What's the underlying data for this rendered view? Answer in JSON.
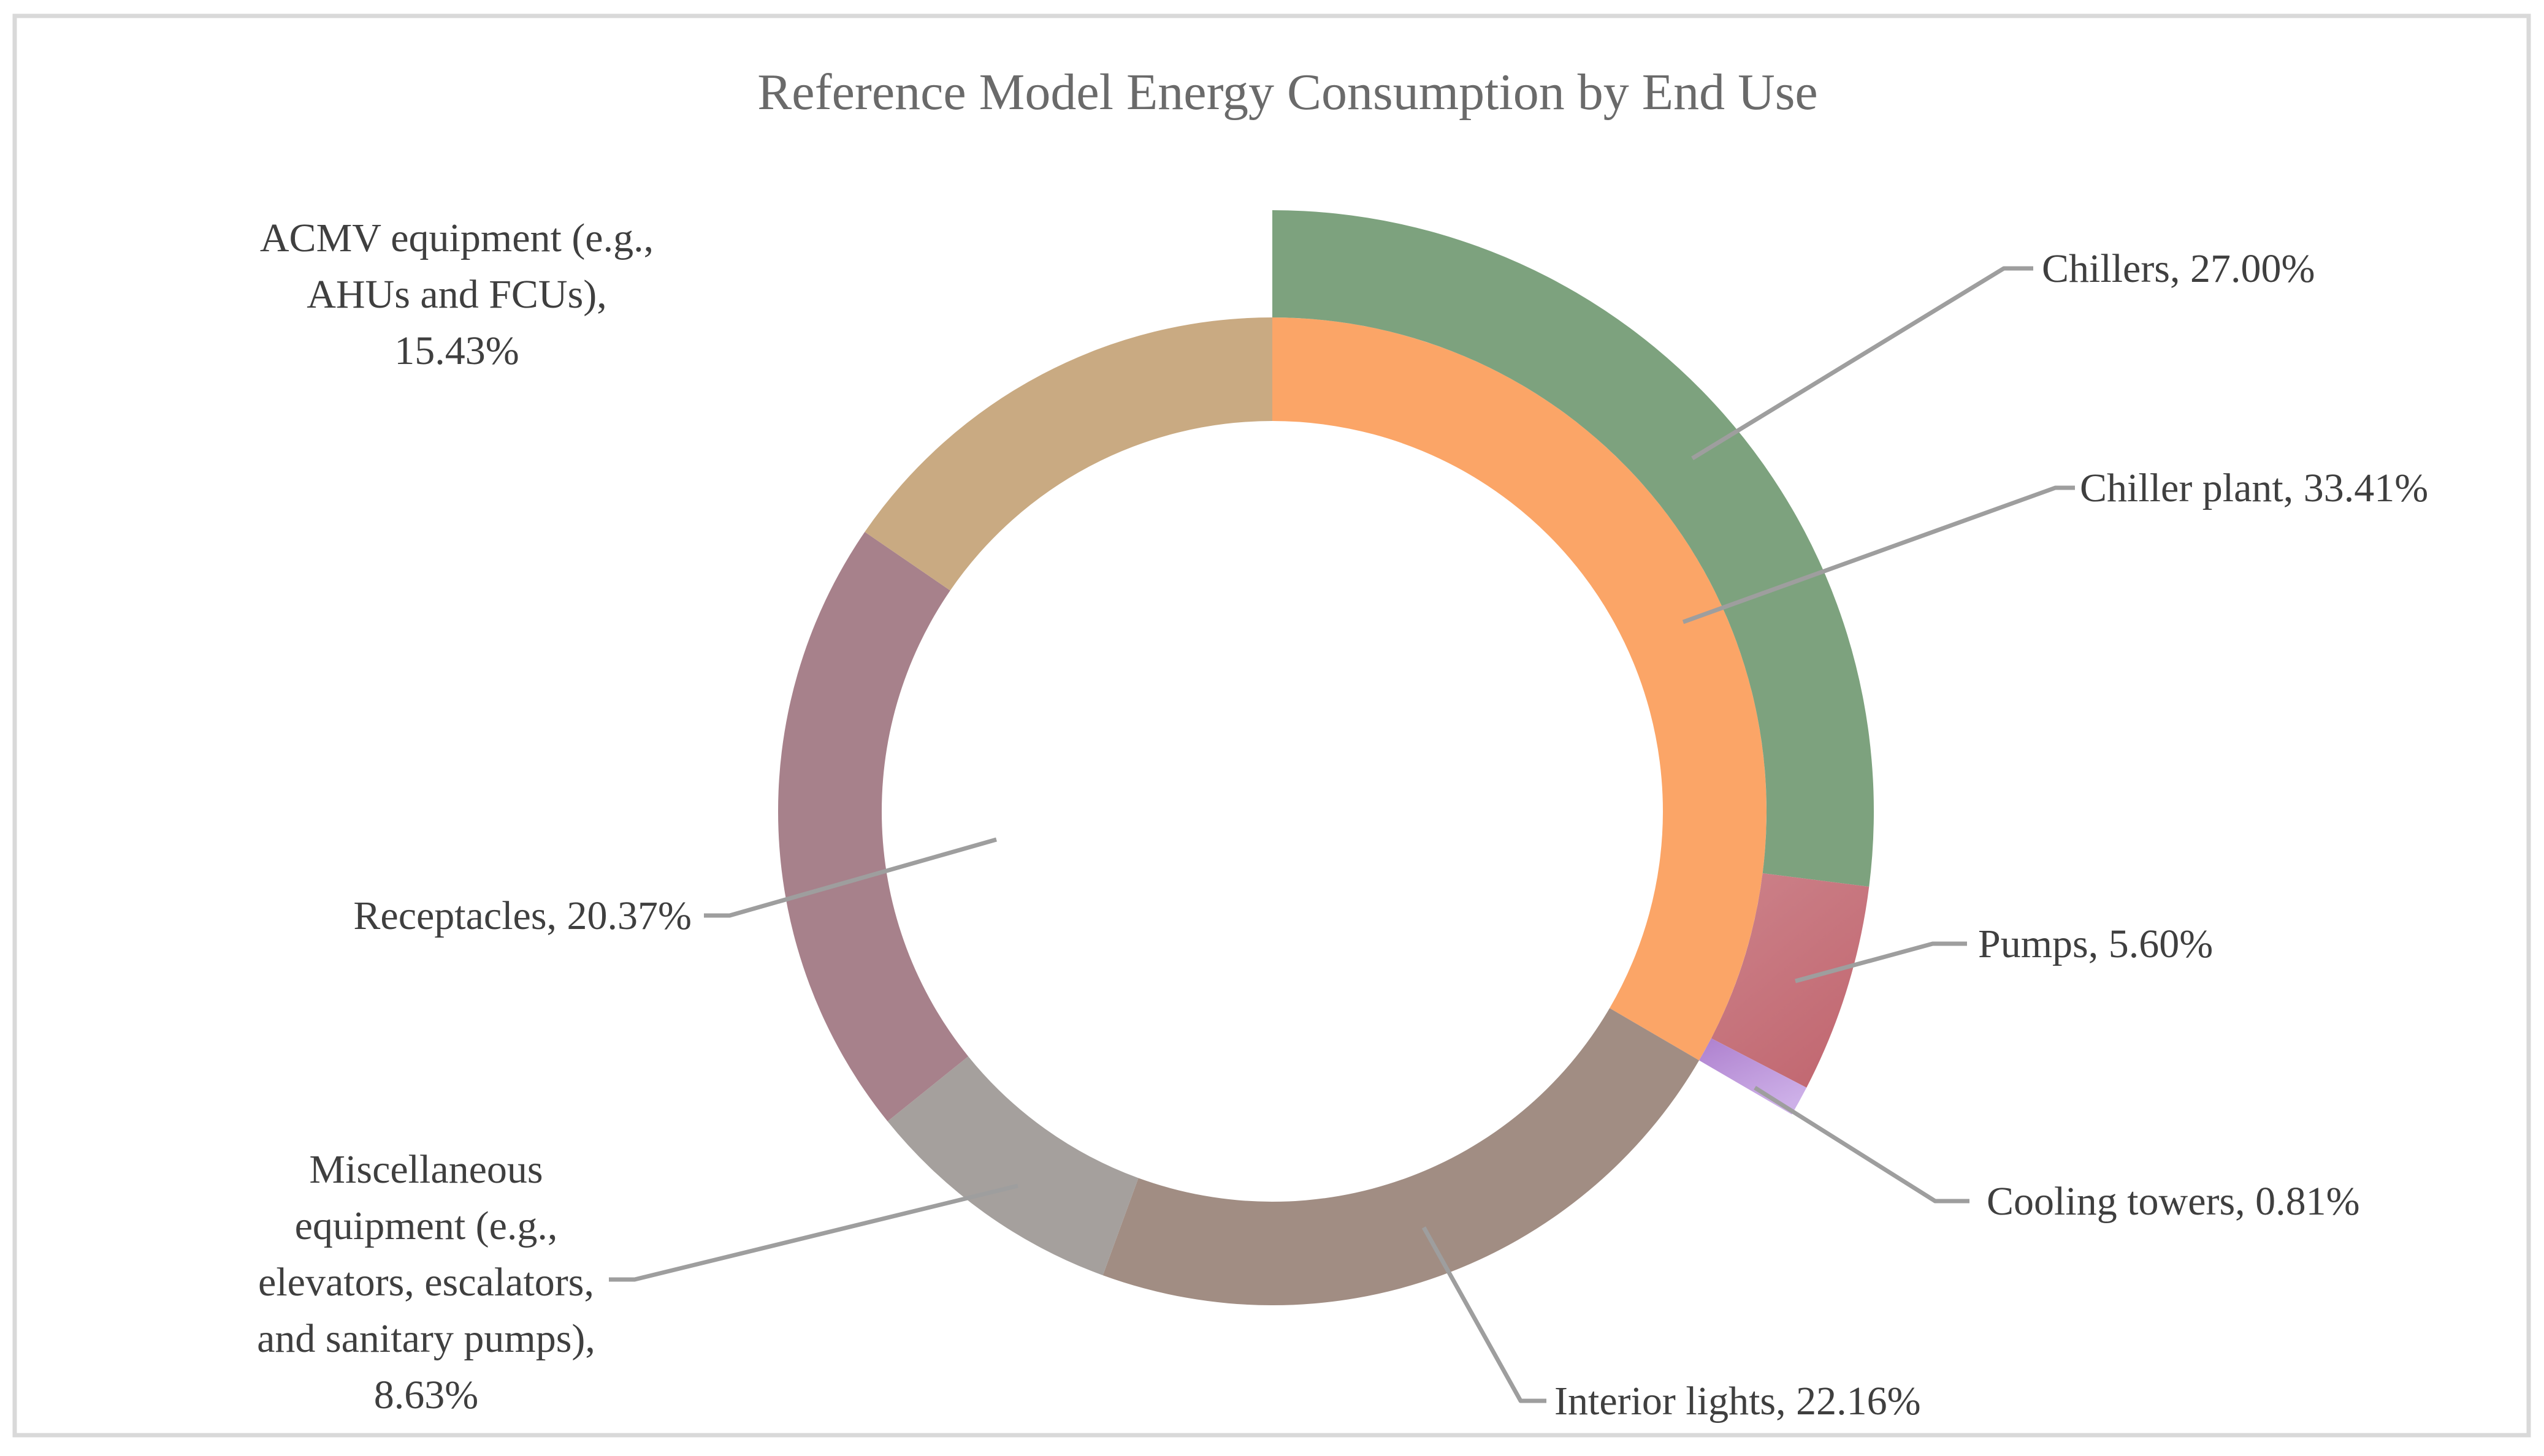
{
  "page": {
    "background": "#FFFFFF",
    "border_color": "#D9D9D9"
  },
  "chart_data": {
    "type": "pie",
    "subtype": "doughnut-two-ring",
    "title": "Reference Model Energy Consumption by End Use",
    "legend_position": "none",
    "grid": false,
    "colors": {
      "title_text": "#6A6A6A",
      "label_text": "#3F3F3F",
      "leader_line": "#9E9E9E",
      "border": "#D9D9D9",
      "hole": "#FFFFFF"
    },
    "rings": [
      {
        "name": "end-use-inner-ring",
        "start_angle_deg": 0,
        "series": [
          {
            "label": "Chiller plant",
            "value": 33.41,
            "color": "#FBA567"
          },
          {
            "label": "Interior lights",
            "value": 22.16,
            "color": "#A18D83"
          },
          {
            "label": "Miscellaneous equipment (e.g., elevators, escalators, and sanitary pumps)",
            "value": 8.63,
            "color": "#A5A09D"
          },
          {
            "label": "Receptacles",
            "value": 20.37,
            "color": "#A7818B"
          },
          {
            "label": "ACMV equipment (e.g., AHUs and FCUs)",
            "value": 15.43,
            "color": "#C9AA82"
          }
        ]
      },
      {
        "name": "chiller-plant-breakdown-outer-ring",
        "start_angle_deg": 0,
        "series": [
          {
            "label": "Chillers",
            "value": 27.0,
            "color": "#7DA27E",
            "color_end": "#7DA27E"
          },
          {
            "label": "Pumps",
            "value": 5.6,
            "color": "#CC828A",
            "color_end": "#C26972"
          },
          {
            "label": "Cooling towers",
            "value": 0.81,
            "color": "#AE80CE",
            "color_end": "#CDB0E8"
          }
        ]
      }
    ],
    "labels": {
      "chillers": {
        "lines": [
          "Chillers, 27.00%"
        ]
      },
      "chiller_plant": {
        "lines": [
          "Chiller plant, 33.41%"
        ]
      },
      "pumps": {
        "lines": [
          "Pumps, 5.60%"
        ]
      },
      "cooling_towers": {
        "lines": [
          "Cooling towers, 0.81%"
        ]
      },
      "interior_lights": {
        "lines": [
          "Interior lights, 22.16%"
        ]
      },
      "receptacles": {
        "lines": [
          "Receptacles, 20.37%"
        ]
      },
      "miscellaneous": {
        "lines": [
          "Miscellaneous",
          "equipment (e.g.,",
          "elevators, escalators,",
          "and sanitary pumps),",
          "8.63%"
        ]
      },
      "acmv": {
        "lines": [
          "ACMV equipment (e.g.,",
          "AHUs and FCUs),",
          "15.43%"
        ]
      }
    }
  }
}
